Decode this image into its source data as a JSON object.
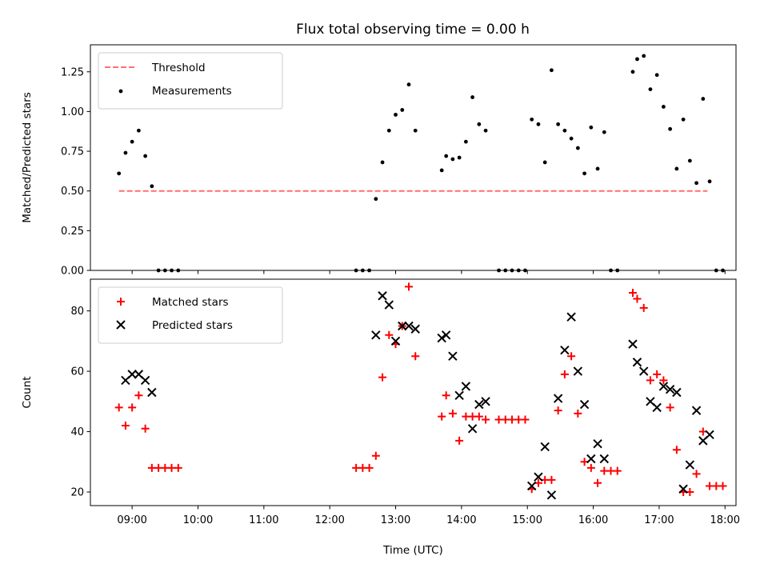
{
  "chart_data": [
    {
      "type": "scatter",
      "title": "Flux total observing time = 0.00 h",
      "ylabel": "Matched/Predicted stars",
      "xlabel": "",
      "ylim": [
        0,
        1.42
      ],
      "xlim": [
        "08:22",
        "18:10"
      ],
      "yticks": [
        0,
        0.25,
        0.5,
        0.75,
        1.0,
        1.25
      ],
      "ytick_labels": [
        "0.00",
        "0.25",
        "0.50",
        "0.75",
        "1.00",
        "1.25"
      ],
      "xticks": [
        "09:00",
        "10:00",
        "11:00",
        "12:00",
        "13:00",
        "14:00",
        "15:00",
        "16:00",
        "17:00",
        "18:00"
      ],
      "show_xtick_labels": false,
      "grid": false,
      "legend_position": "upper left",
      "threshold": {
        "name": "Threshold",
        "y": 0.5,
        "x_start": "08:48",
        "x_end": "17:44",
        "color": "#ff7070",
        "style": "dashed"
      },
      "series": [
        {
          "name": "Measurements",
          "marker": "dot",
          "color": "#000000",
          "points": [
            [
              "08:48",
              0.61
            ],
            [
              "08:54",
              0.74
            ],
            [
              "09:00",
              0.81
            ],
            [
              "09:06",
              0.88
            ],
            [
              "09:12",
              0.72
            ],
            [
              "09:18",
              0.53
            ],
            [
              "09:24",
              0.0
            ],
            [
              "09:30",
              0.0
            ],
            [
              "09:36",
              0.0
            ],
            [
              "09:42",
              0.0
            ],
            [
              "12:24",
              0.0
            ],
            [
              "12:30",
              0.0
            ],
            [
              "12:36",
              0.0
            ],
            [
              "12:42",
              0.45
            ],
            [
              "12:48",
              0.68
            ],
            [
              "12:54",
              0.88
            ],
            [
              "13:00",
              0.98
            ],
            [
              "13:06",
              1.01
            ],
            [
              "13:12",
              1.17
            ],
            [
              "13:18",
              0.88
            ],
            [
              "13:42",
              0.63
            ],
            [
              "13:46",
              0.72
            ],
            [
              "13:52",
              0.7
            ],
            [
              "13:58",
              0.71
            ],
            [
              "14:04",
              0.81
            ],
            [
              "14:10",
              1.09
            ],
            [
              "14:16",
              0.92
            ],
            [
              "14:22",
              0.88
            ],
            [
              "14:34",
              0.0
            ],
            [
              "14:40",
              0.0
            ],
            [
              "14:46",
              0.0
            ],
            [
              "14:52",
              0.0
            ],
            [
              "14:58",
              0.0
            ],
            [
              "15:04",
              0.95
            ],
            [
              "15:10",
              0.92
            ],
            [
              "15:16",
              0.68
            ],
            [
              "15:22",
              1.26
            ],
            [
              "15:28",
              0.92
            ],
            [
              "15:34",
              0.88
            ],
            [
              "15:40",
              0.83
            ],
            [
              "15:46",
              0.77
            ],
            [
              "15:52",
              0.61
            ],
            [
              "15:58",
              0.9
            ],
            [
              "16:04",
              0.64
            ],
            [
              "16:10",
              0.87
            ],
            [
              "16:16",
              0.0
            ],
            [
              "16:22",
              0.0
            ],
            [
              "16:36",
              1.25
            ],
            [
              "16:40",
              1.33
            ],
            [
              "16:46",
              1.35
            ],
            [
              "16:52",
              1.14
            ],
            [
              "16:58",
              1.23
            ],
            [
              "17:04",
              1.03
            ],
            [
              "17:10",
              0.89
            ],
            [
              "17:16",
              0.64
            ],
            [
              "17:22",
              0.95
            ],
            [
              "17:28",
              0.69
            ],
            [
              "17:34",
              0.55
            ],
            [
              "17:40",
              1.08
            ],
            [
              "17:46",
              0.56
            ],
            [
              "17:52",
              0.0
            ],
            [
              "17:58",
              0.0
            ]
          ]
        }
      ]
    },
    {
      "type": "scatter",
      "title": "",
      "ylabel": "Count",
      "xlabel": "Time (UTC)",
      "ylim": [
        15.5,
        90.5
      ],
      "xlim": [
        "08:22",
        "18:10"
      ],
      "yticks": [
        20,
        40,
        60,
        80
      ],
      "ytick_labels": [
        "20",
        "40",
        "60",
        "80"
      ],
      "xticks": [
        "09:00",
        "10:00",
        "11:00",
        "12:00",
        "13:00",
        "14:00",
        "15:00",
        "16:00",
        "17:00",
        "18:00"
      ],
      "show_xtick_labels": true,
      "grid": false,
      "legend_position": "upper left",
      "series": [
        {
          "name": "Matched stars",
          "marker": "plus",
          "color": "#ff0000",
          "points": [
            [
              "08:48",
              48
            ],
            [
              "08:54",
              42
            ],
            [
              "09:00",
              48
            ],
            [
              "09:06",
              52
            ],
            [
              "09:12",
              41
            ],
            [
              "09:18",
              28
            ],
            [
              "09:24",
              28
            ],
            [
              "09:30",
              28
            ],
            [
              "09:36",
              28
            ],
            [
              "09:42",
              28
            ],
            [
              "12:24",
              28
            ],
            [
              "12:30",
              28
            ],
            [
              "12:36",
              28
            ],
            [
              "12:42",
              32
            ],
            [
              "12:48",
              58
            ],
            [
              "12:54",
              72
            ],
            [
              "13:00",
              69
            ],
            [
              "13:06",
              75
            ],
            [
              "13:12",
              88
            ],
            [
              "13:18",
              65
            ],
            [
              "13:42",
              45
            ],
            [
              "13:46",
              52
            ],
            [
              "13:52",
              46
            ],
            [
              "13:58",
              37
            ],
            [
              "14:04",
              45
            ],
            [
              "14:10",
              45
            ],
            [
              "14:16",
              45
            ],
            [
              "14:22",
              44
            ],
            [
              "14:34",
              44
            ],
            [
              "14:40",
              44
            ],
            [
              "14:46",
              44
            ],
            [
              "14:52",
              44
            ],
            [
              "14:58",
              44
            ],
            [
              "15:04",
              21
            ],
            [
              "15:10",
              23
            ],
            [
              "15:16",
              24
            ],
            [
              "15:22",
              24
            ],
            [
              "15:28",
              47
            ],
            [
              "15:34",
              59
            ],
            [
              "15:40",
              65
            ],
            [
              "15:46",
              46
            ],
            [
              "15:52",
              30
            ],
            [
              "15:58",
              28
            ],
            [
              "16:04",
              23
            ],
            [
              "16:10",
              27
            ],
            [
              "16:16",
              27
            ],
            [
              "16:22",
              27
            ],
            [
              "16:36",
              86
            ],
            [
              "16:40",
              84
            ],
            [
              "16:46",
              81
            ],
            [
              "16:52",
              57
            ],
            [
              "16:58",
              59
            ],
            [
              "17:04",
              57
            ],
            [
              "17:10",
              48
            ],
            [
              "17:16",
              34
            ],
            [
              "17:22",
              20
            ],
            [
              "17:28",
              20
            ],
            [
              "17:34",
              26
            ],
            [
              "17:40",
              40
            ],
            [
              "17:46",
              22
            ],
            [
              "17:52",
              22
            ],
            [
              "17:58",
              22
            ]
          ]
        },
        {
          "name": "Predicted stars",
          "marker": "x",
          "color": "#000000",
          "points": [
            [
              "08:54",
              57
            ],
            [
              "09:00",
              59
            ],
            [
              "09:06",
              59
            ],
            [
              "09:12",
              57
            ],
            [
              "09:18",
              53
            ],
            [
              "12:42",
              72
            ],
            [
              "12:48",
              85
            ],
            [
              "12:54",
              82
            ],
            [
              "13:00",
              70
            ],
            [
              "13:06",
              75
            ],
            [
              "13:12",
              75
            ],
            [
              "13:18",
              74
            ],
            [
              "13:42",
              71
            ],
            [
              "13:46",
              72
            ],
            [
              "13:52",
              65
            ],
            [
              "13:58",
              52
            ],
            [
              "14:04",
              55
            ],
            [
              "14:10",
              41
            ],
            [
              "14:16",
              49
            ],
            [
              "14:22",
              50
            ],
            [
              "15:04",
              22
            ],
            [
              "15:10",
              25
            ],
            [
              "15:16",
              35
            ],
            [
              "15:22",
              19
            ],
            [
              "15:28",
              51
            ],
            [
              "15:34",
              67
            ],
            [
              "15:40",
              78
            ],
            [
              "15:46",
              60
            ],
            [
              "15:52",
              49
            ],
            [
              "15:58",
              31
            ],
            [
              "16:04",
              36
            ],
            [
              "16:10",
              31
            ],
            [
              "16:36",
              69
            ],
            [
              "16:40",
              63
            ],
            [
              "16:46",
              60
            ],
            [
              "16:52",
              50
            ],
            [
              "16:58",
              48
            ],
            [
              "17:04",
              55
            ],
            [
              "17:10",
              54
            ],
            [
              "17:16",
              53
            ],
            [
              "17:22",
              21
            ],
            [
              "17:28",
              29
            ],
            [
              "17:34",
              47
            ],
            [
              "17:40",
              37
            ],
            [
              "17:46",
              39
            ]
          ]
        }
      ]
    }
  ]
}
